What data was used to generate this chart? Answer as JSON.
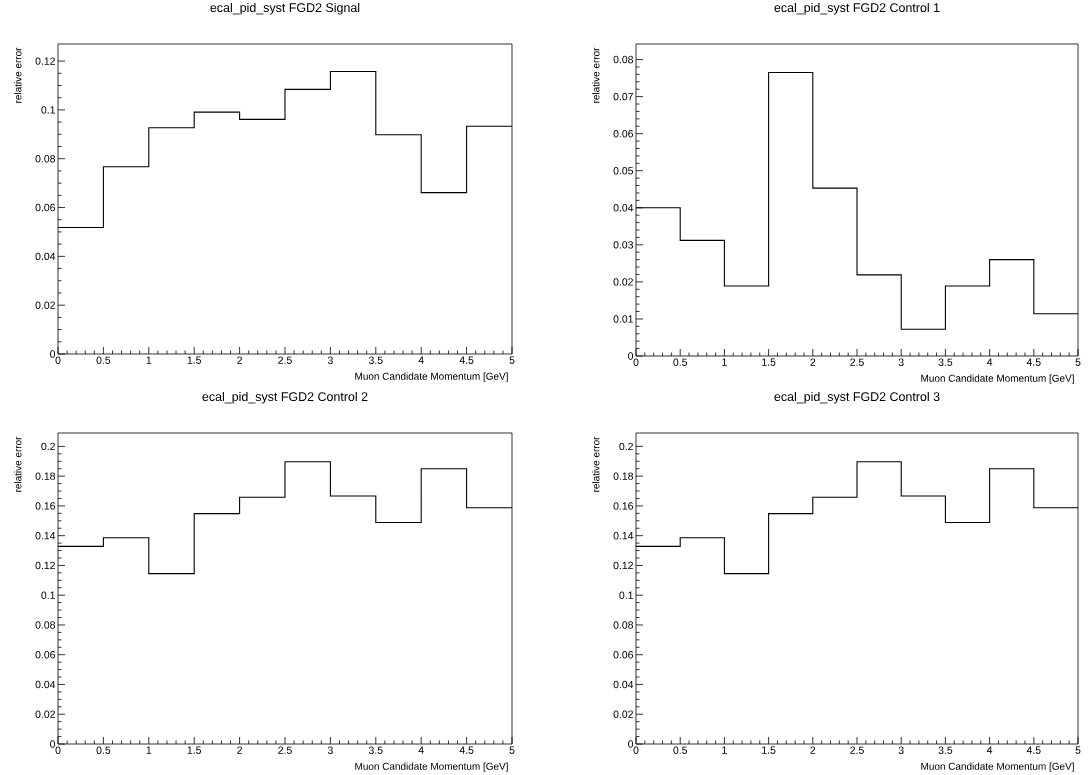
{
  "chart_data": [
    {
      "type": "histogram",
      "title": "ecal_pid_syst FGD2 Signal",
      "xlabel": "Muon Candidate Momentum [GeV]",
      "ylabel": "relative error",
      "color": "#000000",
      "bins": [
        0,
        0.5,
        1,
        1.5,
        2,
        2.5,
        3,
        3.5,
        4,
        4.5,
        5
      ],
      "values": [
        0.0518,
        0.0767,
        0.0927,
        0.0991,
        0.0961,
        0.1084,
        0.1157,
        0.0898,
        0.0661,
        0.0933
      ],
      "xlim": [
        0,
        5
      ],
      "ylim": [
        0,
        0.127
      ],
      "xticks": [
        0,
        0.5,
        1,
        1.5,
        2,
        2.5,
        3,
        3.5,
        4,
        4.5,
        5
      ],
      "yticks": [
        0,
        0.02,
        0.04,
        0.06,
        0.08,
        0.1,
        0.12
      ]
    },
    {
      "type": "histogram",
      "title": "ecal_pid_syst FGD2 Control 1",
      "xlabel": "Muon Candidate Momentum [GeV]",
      "ylabel": "relative error",
      "color": "#000000",
      "bins": [
        0,
        0.5,
        1,
        1.5,
        2,
        2.5,
        3,
        3.5,
        4,
        4.5,
        5
      ],
      "values": [
        0.04,
        0.0312,
        0.0189,
        0.0765,
        0.0453,
        0.0219,
        0.0072,
        0.0189,
        0.026,
        0.0114
      ],
      "xlim": [
        0,
        5
      ],
      "ylim": [
        0,
        0.0842
      ],
      "xticks": [
        0,
        0.5,
        1,
        1.5,
        2,
        2.5,
        3,
        3.5,
        4,
        4.5,
        5
      ],
      "yticks": [
        0,
        0.01,
        0.02,
        0.03,
        0.04,
        0.05,
        0.06,
        0.07,
        0.08
      ]
    },
    {
      "type": "histogram",
      "title": "ecal_pid_syst FGD2 Control 2",
      "xlabel": "Muon Candidate Momentum [GeV]",
      "ylabel": "relative error",
      "color": "#000000",
      "bins": [
        0,
        0.5,
        1,
        1.5,
        2,
        2.5,
        3,
        3.5,
        4,
        4.5,
        5
      ],
      "values": [
        0.1328,
        0.1386,
        0.1145,
        0.1548,
        0.1658,
        0.1897,
        0.1667,
        0.1489,
        0.185,
        0.1588
      ],
      "xlim": [
        0,
        5
      ],
      "ylim": [
        0,
        0.209
      ],
      "xticks": [
        0,
        0.5,
        1,
        1.5,
        2,
        2.5,
        3,
        3.5,
        4,
        4.5,
        5
      ],
      "yticks": [
        0,
        0.02,
        0.04,
        0.06,
        0.08,
        0.1,
        0.12,
        0.14,
        0.16,
        0.18,
        0.2
      ]
    },
    {
      "type": "histogram",
      "title": "ecal_pid_syst FGD2 Control 3",
      "xlabel": "Muon Candidate Momentum [GeV]",
      "ylabel": "relative error",
      "color": "#000000",
      "bins": [
        0,
        0.5,
        1,
        1.5,
        2,
        2.5,
        3,
        3.5,
        4,
        4.5,
        5
      ],
      "values": [
        0.1328,
        0.1386,
        0.1145,
        0.1548,
        0.1658,
        0.1897,
        0.1667,
        0.1489,
        0.185,
        0.1588
      ],
      "xlim": [
        0,
        5
      ],
      "ylim": [
        0,
        0.209
      ],
      "xticks": [
        0,
        0.5,
        1,
        1.5,
        2,
        2.5,
        3,
        3.5,
        4,
        4.5,
        5
      ],
      "yticks": [
        0,
        0.02,
        0.04,
        0.06,
        0.08,
        0.1,
        0.12,
        0.14,
        0.16,
        0.18,
        0.2
      ]
    }
  ]
}
